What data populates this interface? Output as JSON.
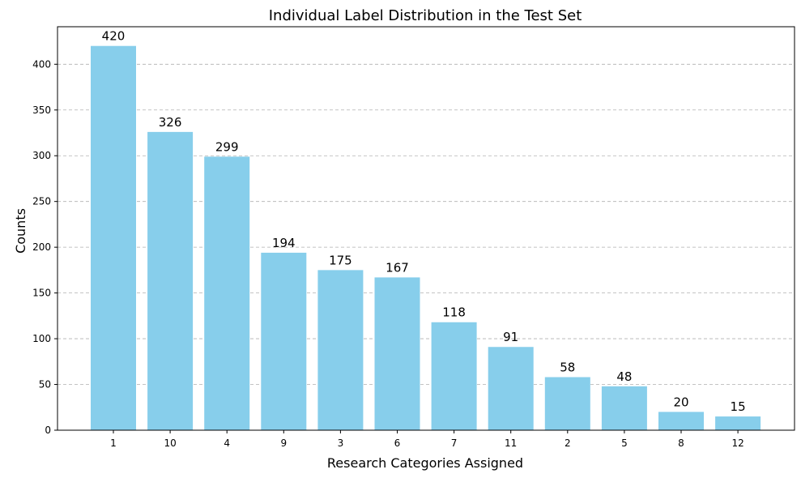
{
  "chart_data": {
    "type": "bar",
    "title": "Individual Label Distribution in the Test Set",
    "xlabel": "Research Categories Assigned",
    "ylabel": "Counts",
    "categories": [
      "1",
      "10",
      "4",
      "9",
      "3",
      "6",
      "7",
      "11",
      "2",
      "5",
      "8",
      "12"
    ],
    "values": [
      420,
      326,
      299,
      194,
      175,
      167,
      118,
      91,
      58,
      48,
      20,
      15
    ],
    "ylim": [
      0,
      441
    ],
    "yticks": [
      0,
      50,
      100,
      150,
      200,
      250,
      300,
      350,
      400
    ],
    "grid": "y-dashed",
    "bar_color": "#87CEEB"
  }
}
